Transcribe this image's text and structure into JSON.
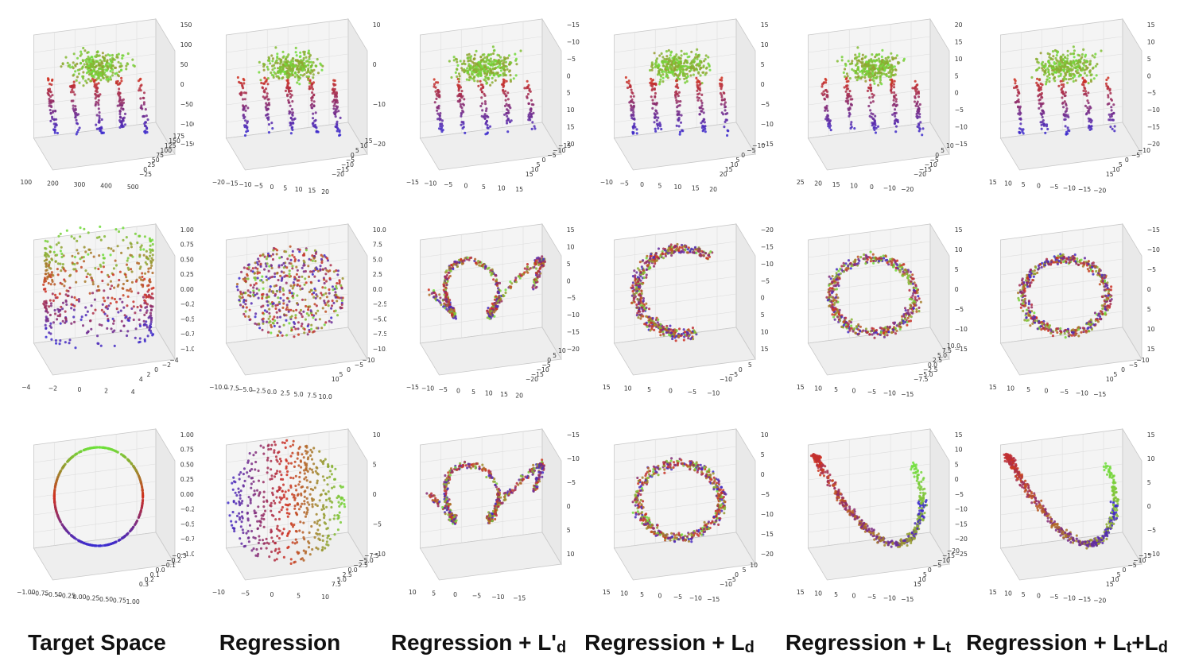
{
  "columns": [
    {
      "text": "Target Space",
      "base": "Target Space",
      "script": "",
      "script_type": "",
      "suffix": ""
    },
    {
      "text": "Regression",
      "base": "Regression",
      "script": "",
      "script_type": "",
      "suffix": ""
    },
    {
      "text": "Regression + L'd",
      "base": "Regression + L'",
      "script": "d",
      "script_type": "sub",
      "suffix": ""
    },
    {
      "text": "Regression + Ld",
      "base": "Regression + L",
      "script": "d",
      "script_type": "sub",
      "suffix": ""
    },
    {
      "text": "Regression + Lt",
      "base": "Regression + L",
      "script": "t",
      "script_type": "sub",
      "suffix": ""
    },
    {
      "text": "Regression + Lt +Ld",
      "base": "Regression + L",
      "script": "t",
      "script_type": "sub",
      "suffix": " +L",
      "suffix_script": "d"
    }
  ],
  "chart_data": [
    {
      "type": "scatter",
      "row": 0,
      "col": 0,
      "shape": "humanoid",
      "ticks": {
        "a": [
          "150",
          "100",
          "50",
          "0",
          "−50",
          "−100",
          "−150"
        ],
        "b": [
          "100",
          "200",
          "300",
          "400",
          "500"
        ],
        "c": [
          "−25",
          "0",
          "25",
          "50",
          "75",
          "100",
          "125",
          "150",
          "175"
        ]
      },
      "colors": [
        "#3a2bd0",
        "#d0301f",
        "#6ee03a"
      ]
    },
    {
      "type": "scatter",
      "row": 0,
      "col": 1,
      "shape": "limbs",
      "ticks": {
        "a": [
          "10",
          "0",
          "−10",
          "−20"
        ],
        "b": [
          "−20",
          "−15",
          "−10",
          "−5",
          "0",
          "5",
          "10",
          "15",
          "20"
        ],
        "c": [
          "−20",
          "−15",
          "−10",
          "−5",
          "0",
          "5",
          "10",
          "15"
        ]
      },
      "colors": [
        "#3a2bd0",
        "#d0301f",
        "#6ee03a"
      ]
    },
    {
      "type": "scatter",
      "row": 0,
      "col": 2,
      "shape": "limbs",
      "ticks": {
        "a": [
          "−15",
          "−10",
          "−5",
          "0",
          "5",
          "10",
          "15",
          "20"
        ],
        "b": [
          "−15",
          "−10",
          "−5",
          "0",
          "5",
          "10",
          "15"
        ],
        "c": [
          "15",
          "10",
          "5",
          "0",
          "−5",
          "−10",
          "−15"
        ]
      },
      "colors": [
        "#3a2bd0",
        "#d0301f",
        "#6ee03a"
      ]
    },
    {
      "type": "scatter",
      "row": 0,
      "col": 3,
      "shape": "limbs",
      "ticks": {
        "a": [
          "15",
          "10",
          "5",
          "0",
          "−5",
          "−10",
          "−15"
        ],
        "b": [
          "−10",
          "−5",
          "0",
          "5",
          "10",
          "15",
          "20"
        ],
        "c": [
          "20",
          "15",
          "10",
          "5",
          "0",
          "−5",
          "−10"
        ]
      },
      "colors": [
        "#3a2bd0",
        "#d0301f",
        "#6ee03a"
      ]
    },
    {
      "type": "scatter",
      "row": 0,
      "col": 4,
      "shape": "limbs",
      "ticks": {
        "a": [
          "20",
          "15",
          "10",
          "5",
          "0",
          "−5",
          "−10",
          "−15"
        ],
        "b": [
          "25",
          "20",
          "15",
          "10",
          "0",
          "−10",
          "−20"
        ],
        "c": [
          "−20",
          "−15",
          "−10",
          "−5",
          "0",
          "5",
          "10"
        ]
      },
      "colors": [
        "#3a2bd0",
        "#d0301f",
        "#6ee03a"
      ]
    },
    {
      "type": "scatter",
      "row": 0,
      "col": 5,
      "shape": "limbs",
      "ticks": {
        "a": [
          "15",
          "10",
          "5",
          "0",
          "−5",
          "−10",
          "−15",
          "−20"
        ],
        "b": [
          "15",
          "10",
          "5",
          "0",
          "−5",
          "−10",
          "−15",
          "−20"
        ],
        "c": [
          "15",
          "10",
          "5",
          "0",
          "−5",
          "−10"
        ]
      },
      "colors": [
        "#3a2bd0",
        "#d0301f",
        "#6ee03a"
      ]
    },
    {
      "type": "scatter",
      "row": 1,
      "col": 0,
      "shape": "cylinder",
      "ticks": {
        "a": [
          "1.00",
          "0.75",
          "0.50",
          "0.25",
          "0.00",
          "−0.25",
          "−0.50",
          "−0.75",
          "−1.00"
        ],
        "b": [
          "−4",
          "−2",
          "0",
          "2",
          "4"
        ],
        "c": [
          "4",
          "2",
          "0",
          "−2",
          "−4"
        ]
      },
      "colors": [
        "#3a2bd0",
        "#d0301f",
        "#6ee03a"
      ]
    },
    {
      "type": "scatter",
      "row": 1,
      "col": 1,
      "shape": "blob",
      "ticks": {
        "a": [
          "10.0",
          "7.5",
          "5.0",
          "2.5",
          "0.0",
          "−2.5",
          "−5.0",
          "−7.5",
          "−10.0"
        ],
        "b": [
          "−10.0",
          "−7.5",
          "−5.0",
          "−2.5",
          "0.0",
          "2.5",
          "5.0",
          "7.5",
          "10.0"
        ],
        "c": [
          "10",
          "5",
          "0",
          "−5",
          "−10"
        ]
      },
      "colors": [
        "#3a2bd0",
        "#d0301f",
        "#6ee03a"
      ]
    },
    {
      "type": "scatter",
      "row": 1,
      "col": 2,
      "shape": "tangle",
      "ticks": {
        "a": [
          "15",
          "10",
          "5",
          "0",
          "−5",
          "−10",
          "−15",
          "−20"
        ],
        "b": [
          "−15",
          "−10",
          "−5",
          "0",
          "5",
          "10",
          "15",
          "20"
        ],
        "c": [
          "−20",
          "−15",
          "−10",
          "−5",
          "0",
          "5",
          "10"
        ]
      },
      "colors": [
        "#3a2bd0",
        "#d0301f",
        "#6ee03a"
      ]
    },
    {
      "type": "scatter",
      "row": 1,
      "col": 3,
      "shape": "arc",
      "ticks": {
        "a": [
          "−20",
          "−15",
          "−10",
          "−5",
          "0",
          "5",
          "10",
          "15"
        ],
        "b": [
          "15",
          "10",
          "5",
          "0",
          "−5",
          "−10"
        ],
        "c": [
          "−10",
          "−5",
          "0",
          "5"
        ]
      },
      "colors": [
        "#3a2bd0",
        "#d0301f",
        "#6ee03a"
      ]
    },
    {
      "type": "scatter",
      "row": 1,
      "col": 4,
      "shape": "ring",
      "ticks": {
        "a": [
          "15",
          "10",
          "5",
          "0",
          "−5",
          "−10",
          "−15"
        ],
        "b": [
          "15",
          "10",
          "5",
          "0",
          "−5",
          "−10",
          "−15"
        ],
        "c": [
          "−7.5",
          "−5.0",
          "−2.5",
          "0.0",
          "2.5",
          "5.0",
          "7.5",
          "10.0"
        ]
      },
      "colors": [
        "#3a2bd0",
        "#d0301f",
        "#6ee03a"
      ]
    },
    {
      "type": "scatter",
      "row": 1,
      "col": 5,
      "shape": "ring",
      "ticks": {
        "a": [
          "−15",
          "−10",
          "−5",
          "0",
          "5",
          "10",
          "15"
        ],
        "b": [
          "15",
          "10",
          "5",
          "0",
          "−5",
          "−10",
          "−15"
        ],
        "c": [
          "10",
          "5",
          "0",
          "−5",
          "−10"
        ]
      },
      "colors": [
        "#3a2bd0",
        "#d0301f",
        "#6ee03a"
      ]
    },
    {
      "type": "scatter",
      "row": 2,
      "col": 0,
      "shape": "circle",
      "ticks": {
        "a": [
          "1.00",
          "0.75",
          "0.50",
          "0.25",
          "0.00",
          "−0.25",
          "−0.50",
          "−0.75",
          "−1.00"
        ],
        "b": [
          "−1.00",
          "−0.75",
          "−0.50",
          "−0.25",
          "0.00",
          "0.25",
          "0.50",
          "0.75",
          "1.00"
        ],
        "c": [
          "0.3",
          "0.2",
          "0.1",
          "0.0",
          "−0.1",
          "−0.2",
          "−0.3"
        ]
      },
      "colors": [
        "#3a2bd0",
        "#d0301f",
        "#6ee03a"
      ]
    },
    {
      "type": "scatter",
      "row": 2,
      "col": 1,
      "shape": "disc",
      "ticks": {
        "a": [
          "10",
          "5",
          "0",
          "−5",
          "−10"
        ],
        "b": [
          "−10",
          "−5",
          "0",
          "5",
          "10"
        ],
        "c": [
          "7.5",
          "5.0",
          "2.5",
          "0.0",
          "−2.5",
          "−5.0",
          "−7.5"
        ]
      },
      "colors": [
        "#3a2bd0",
        "#d0301f",
        "#6ee03a"
      ]
    },
    {
      "type": "scatter",
      "row": 2,
      "col": 2,
      "shape": "tangle",
      "ticks": {
        "a": [
          "−15",
          "−10",
          "−5",
          "0",
          "5",
          "10"
        ],
        "b": [
          "10",
          "5",
          "0",
          "−5",
          "−10",
          "−15"
        ],
        "c": []
      },
      "colors": [
        "#3a2bd0",
        "#d0301f",
        "#6ee03a"
      ]
    },
    {
      "type": "scatter",
      "row": 2,
      "col": 3,
      "shape": "ring",
      "ticks": {
        "a": [
          "10",
          "5",
          "0",
          "−5",
          "−10",
          "−15",
          "−20"
        ],
        "b": [
          "15",
          "10",
          "5",
          "0",
          "−5",
          "−10",
          "−15"
        ],
        "c": [
          "−10",
          "−5",
          "0",
          "5",
          "10"
        ]
      },
      "colors": [
        "#3a2bd0",
        "#d0301f",
        "#6ee03a"
      ]
    },
    {
      "type": "scatter",
      "row": 2,
      "col": 4,
      "shape": "snake",
      "ticks": {
        "a": [
          "15",
          "10",
          "5",
          "0",
          "−5",
          "−10",
          "−15",
          "−20",
          "−25"
        ],
        "b": [
          "15",
          "10",
          "5",
          "0",
          "−5",
          "−10",
          "−15"
        ],
        "c": [
          "15",
          "10",
          "5",
          "0",
          "−5",
          "−10",
          "−15",
          "−20"
        ]
      },
      "colors": [
        "#3a2bd0",
        "#d0301f",
        "#6ee03a"
      ]
    },
    {
      "type": "scatter",
      "row": 2,
      "col": 5,
      "shape": "snake",
      "ticks": {
        "a": [
          "15",
          "10",
          "5",
          "0",
          "−5",
          "−10"
        ],
        "b": [
          "15",
          "10",
          "5",
          "0",
          "−5",
          "−10",
          "−15",
          "−20"
        ],
        "c": [
          "15",
          "10",
          "5",
          "0",
          "−5",
          "−10",
          "−15"
        ]
      },
      "colors": [
        "#3a2bd0",
        "#d0301f",
        "#6ee03a"
      ]
    }
  ]
}
